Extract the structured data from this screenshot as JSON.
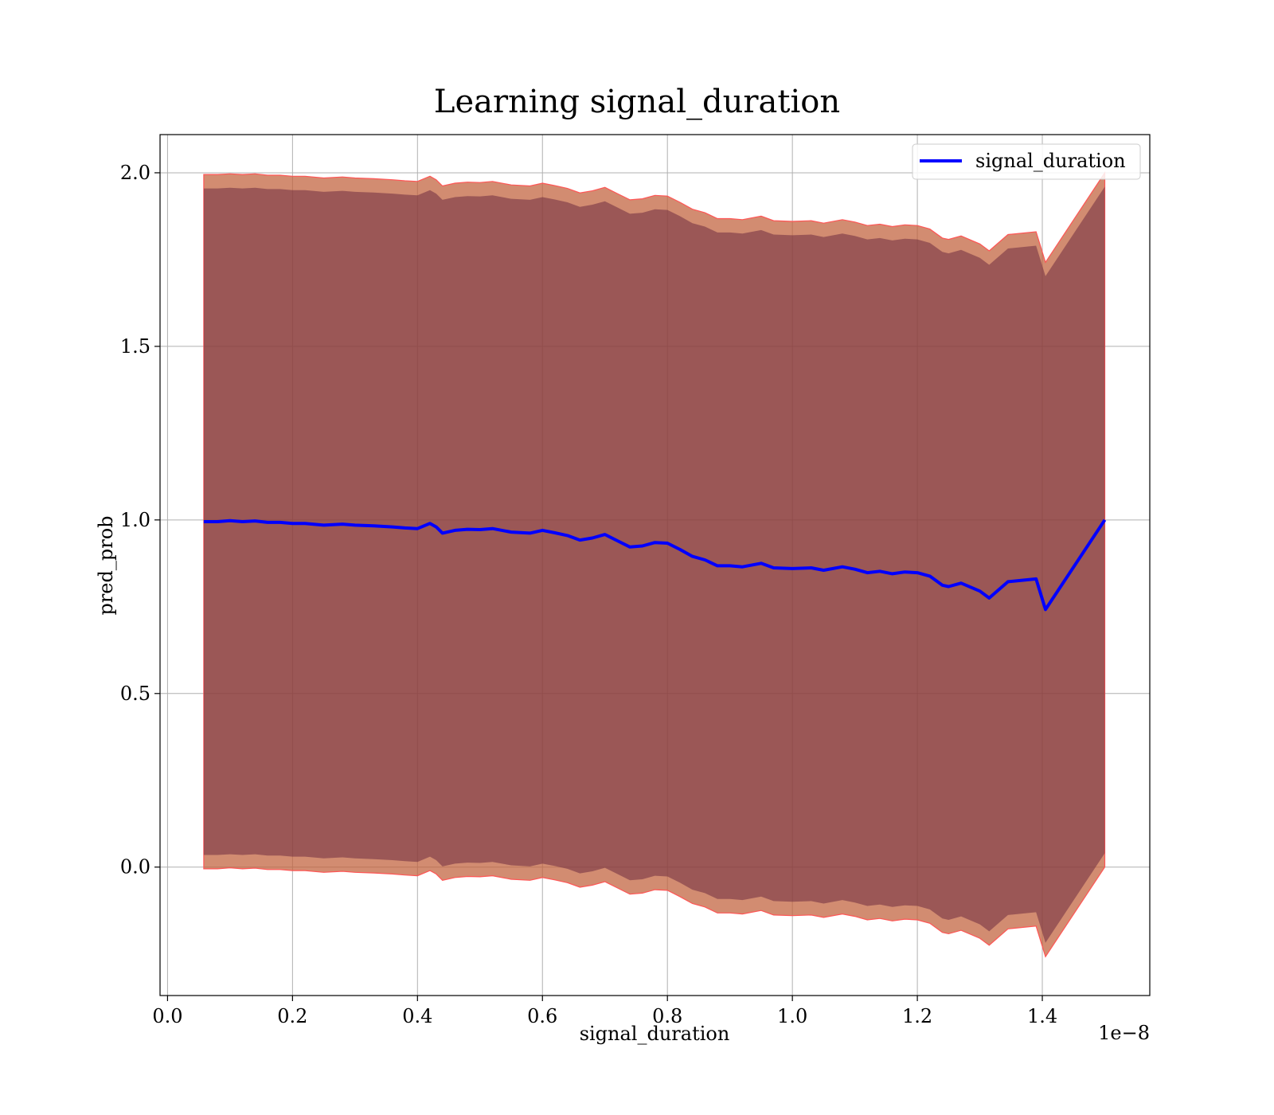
{
  "chart_data": {
    "type": "line",
    "title": "Learning signal_duration",
    "xlabel": "signal_duration",
    "ylabel": "pred_prob",
    "x_offset_text": "1e−8",
    "xlim": [
      -0.012,
      1.572
    ],
    "ylim": [
      -0.37,
      2.11
    ],
    "xticks": [
      0.0,
      0.2,
      0.4,
      0.6,
      0.8,
      1.0,
      1.2,
      1.4
    ],
    "xtick_labels": [
      "0.0",
      "0.2",
      "0.4",
      "0.6",
      "0.8",
      "1.0",
      "1.2",
      "1.4"
    ],
    "yticks": [
      0.0,
      0.5,
      1.0,
      1.5,
      2.0
    ],
    "ytick_labels": [
      "0.0",
      "0.5",
      "1.0",
      "1.5",
      "2.0"
    ],
    "grid": true,
    "legend": {
      "position": "upper right",
      "entries": [
        "signal_duration"
      ]
    },
    "colors": {
      "line": "#0000ff",
      "band_inner": "#6e2c3f",
      "band_outer": "#c0603a",
      "band_edge": "#ff5555",
      "grid": "#b0b0b0"
    },
    "series": [
      {
        "name": "signal_duration",
        "x": [
          0.058,
          0.08,
          0.1,
          0.12,
          0.14,
          0.16,
          0.18,
          0.2,
          0.22,
          0.25,
          0.28,
          0.3,
          0.33,
          0.36,
          0.38,
          0.4,
          0.42,
          0.43,
          0.44,
          0.46,
          0.48,
          0.5,
          0.52,
          0.55,
          0.58,
          0.6,
          0.62,
          0.64,
          0.66,
          0.68,
          0.7,
          0.72,
          0.74,
          0.76,
          0.78,
          0.8,
          0.82,
          0.84,
          0.86,
          0.88,
          0.9,
          0.92,
          0.95,
          0.97,
          1.0,
          1.03,
          1.05,
          1.08,
          1.1,
          1.12,
          1.14,
          1.16,
          1.18,
          1.2,
          1.22,
          1.24,
          1.25,
          1.27,
          1.3,
          1.315,
          1.345,
          1.39,
          1.405,
          1.5
        ],
        "y": [
          0.995,
          0.995,
          0.998,
          0.995,
          0.997,
          0.993,
          0.993,
          0.99,
          0.99,
          0.985,
          0.988,
          0.985,
          0.983,
          0.98,
          0.977,
          0.975,
          0.99,
          0.98,
          0.962,
          0.97,
          0.973,
          0.972,
          0.975,
          0.965,
          0.962,
          0.97,
          0.963,
          0.955,
          0.942,
          0.948,
          0.958,
          0.94,
          0.922,
          0.925,
          0.935,
          0.933,
          0.915,
          0.895,
          0.885,
          0.868,
          0.868,
          0.865,
          0.875,
          0.862,
          0.86,
          0.862,
          0.855,
          0.865,
          0.858,
          0.848,
          0.852,
          0.845,
          0.85,
          0.848,
          0.838,
          0.812,
          0.808,
          0.818,
          0.795,
          0.775,
          0.822,
          0.83,
          0.742,
          1.0
        ],
        "upper": [
          1.955,
          1.955,
          1.957,
          1.955,
          1.957,
          1.953,
          1.953,
          1.95,
          1.95,
          1.945,
          1.948,
          1.945,
          1.943,
          1.94,
          1.937,
          1.935,
          1.95,
          1.94,
          1.922,
          1.93,
          1.933,
          1.932,
          1.935,
          1.925,
          1.922,
          1.93,
          1.923,
          1.915,
          1.902,
          1.908,
          1.918,
          1.9,
          1.882,
          1.885,
          1.895,
          1.893,
          1.875,
          1.855,
          1.845,
          1.828,
          1.828,
          1.825,
          1.835,
          1.822,
          1.82,
          1.822,
          1.815,
          1.825,
          1.818,
          1.808,
          1.812,
          1.805,
          1.81,
          1.808,
          1.798,
          1.772,
          1.768,
          1.778,
          1.755,
          1.735,
          1.782,
          1.79,
          1.702,
          1.96
        ],
        "lower": [
          0.035,
          0.035,
          0.037,
          0.035,
          0.037,
          0.033,
          0.033,
          0.03,
          0.03,
          0.025,
          0.028,
          0.025,
          0.023,
          0.02,
          0.017,
          0.015,
          0.03,
          0.02,
          0.002,
          0.01,
          0.013,
          0.012,
          0.015,
          0.005,
          0.002,
          0.01,
          0.003,
          -0.005,
          -0.018,
          -0.012,
          -0.002,
          -0.02,
          -0.038,
          -0.035,
          -0.025,
          -0.027,
          -0.045,
          -0.065,
          -0.075,
          -0.092,
          -0.092,
          -0.095,
          -0.085,
          -0.098,
          -0.1,
          -0.098,
          -0.105,
          -0.095,
          -0.102,
          -0.112,
          -0.108,
          -0.115,
          -0.11,
          -0.112,
          -0.122,
          -0.148,
          -0.152,
          -0.142,
          -0.165,
          -0.185,
          -0.138,
          -0.13,
          -0.218,
          0.04
        ],
        "upper_outer": [
          1.995,
          1.995,
          1.997,
          1.995,
          1.997,
          1.993,
          1.993,
          1.99,
          1.99,
          1.985,
          1.988,
          1.985,
          1.983,
          1.98,
          1.977,
          1.975,
          1.99,
          1.98,
          1.962,
          1.97,
          1.973,
          1.972,
          1.975,
          1.965,
          1.962,
          1.97,
          1.963,
          1.955,
          1.942,
          1.948,
          1.958,
          1.94,
          1.922,
          1.925,
          1.935,
          1.933,
          1.915,
          1.895,
          1.885,
          1.868,
          1.868,
          1.865,
          1.875,
          1.862,
          1.86,
          1.862,
          1.855,
          1.865,
          1.858,
          1.848,
          1.852,
          1.845,
          1.85,
          1.848,
          1.838,
          1.812,
          1.808,
          1.818,
          1.795,
          1.775,
          1.822,
          1.83,
          1.742,
          2.0
        ],
        "lower_outer": [
          -0.005,
          -0.005,
          -0.002,
          -0.005,
          -0.003,
          -0.007,
          -0.007,
          -0.01,
          -0.01,
          -0.015,
          -0.012,
          -0.015,
          -0.017,
          -0.02,
          -0.023,
          -0.025,
          -0.01,
          -0.02,
          -0.038,
          -0.03,
          -0.027,
          -0.028,
          -0.025,
          -0.035,
          -0.038,
          -0.03,
          -0.037,
          -0.045,
          -0.058,
          -0.052,
          -0.042,
          -0.06,
          -0.078,
          -0.075,
          -0.065,
          -0.067,
          -0.085,
          -0.105,
          -0.115,
          -0.132,
          -0.132,
          -0.135,
          -0.125,
          -0.138,
          -0.14,
          -0.138,
          -0.145,
          -0.135,
          -0.142,
          -0.152,
          -0.148,
          -0.155,
          -0.15,
          -0.152,
          -0.162,
          -0.188,
          -0.192,
          -0.182,
          -0.205,
          -0.225,
          -0.178,
          -0.17,
          -0.258,
          0.0
        ]
      }
    ]
  }
}
